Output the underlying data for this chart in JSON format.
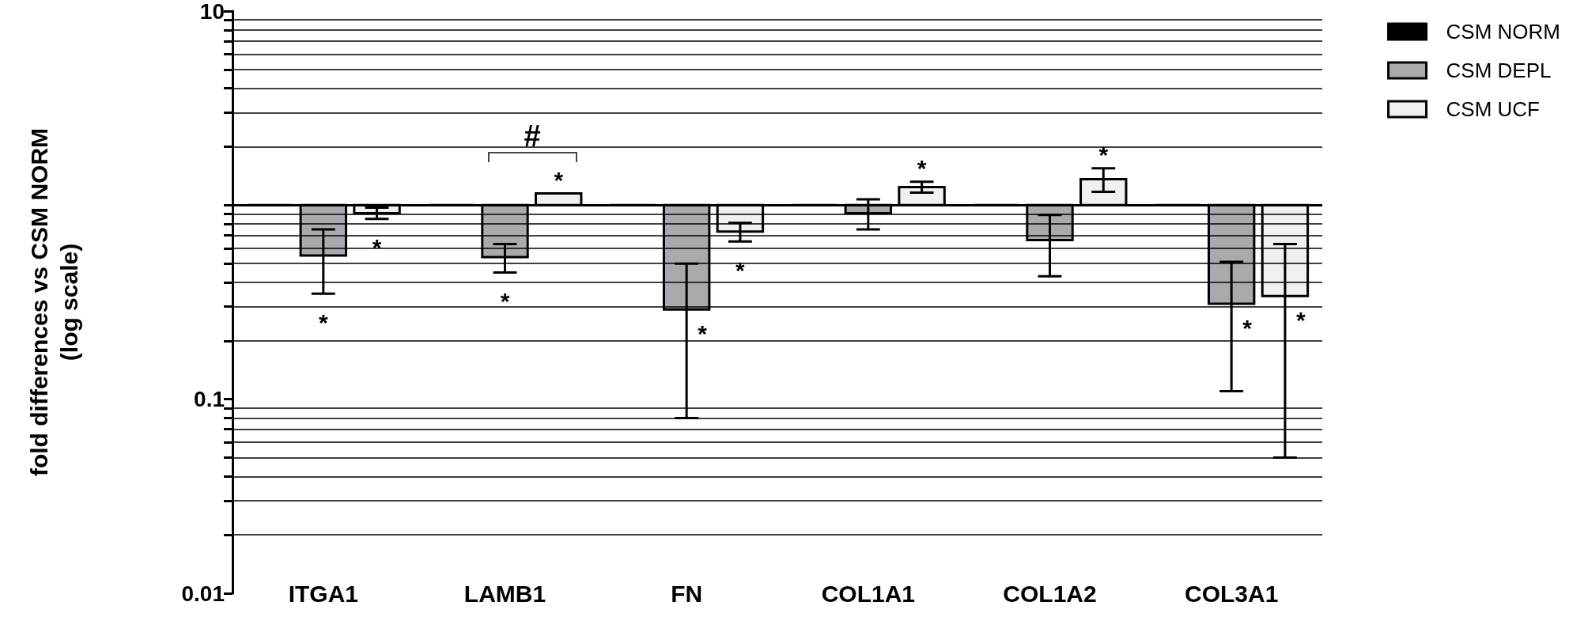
{
  "chart_data": {
    "type": "bar",
    "ylabel": "fold differences vs CSM NORM\n(log scale)",
    "categories": [
      "ITGA1",
      "LAMB1",
      "FN",
      "COL1A1",
      "COL1A2",
      "COL3A1"
    ],
    "series": [
      {
        "name": "CSM NORM",
        "color": "#000000",
        "base": [
          1,
          1,
          1,
          1,
          1,
          1
        ],
        "values": [
          0,
          0,
          0,
          0,
          0,
          0
        ]
      },
      {
        "name": "CSM DEPL",
        "color": "#a9aaae",
        "base": [
          1,
          1,
          1,
          1,
          1,
          1
        ],
        "values": [
          -0.45,
          -0.46,
          -0.71,
          -0.09,
          -0.34,
          -0.69
        ],
        "errors": [
          0.2,
          0.09,
          0.21,
          0.16,
          0.23,
          0.2
        ],
        "value_labels": [
          "*",
          "*",
          "*",
          null,
          null,
          "*"
        ]
      },
      {
        "name": "CSM UCF",
        "color": "#f0f0f0",
        "base": [
          1,
          1,
          1,
          1,
          1,
          1
        ],
        "values": [
          -0.09,
          0.15,
          -0.27,
          0.24,
          0.36,
          -0.66
        ],
        "errors": [
          0.06,
          null,
          0.08,
          0.08,
          0.19,
          0.29
        ],
        "value_labels": [
          "*",
          "*",
          "*",
          "*",
          "*",
          "*"
        ]
      }
    ],
    "log": true,
    "ylim": [
      0.01,
      10
    ],
    "yticks": [
      0.01,
      {
        "value": 0.02,
        "label": null
      },
      {
        "value": 0.03,
        "label": null
      },
      {
        "value": 0.04,
        "label": null
      },
      {
        "value": 0.05,
        "label": null
      },
      {
        "value": 0.06,
        "label": null
      },
      {
        "value": 0.07,
        "label": null
      },
      {
        "value": 0.08,
        "label": null
      },
      {
        "value": 0.09,
        "label": null
      },
      0.1,
      {
        "value": 0.2,
        "label": null
      },
      {
        "value": 0.3,
        "label": null
      },
      {
        "value": 0.4,
        "label": null
      },
      {
        "value": 0.5,
        "label": null
      },
      {
        "value": 0.6,
        "label": null
      },
      {
        "value": 0.7,
        "label": null
      },
      {
        "value": 0.8,
        "label": null
      },
      {
        "value": 0.9,
        "label": null
      },
      {
        "value": 1,
        "label": null
      },
      {
        "value": 2,
        "label": null
      },
      {
        "value": 3,
        "label": null
      },
      {
        "value": 4,
        "label": null
      },
      {
        "value": 5,
        "label": null
      },
      {
        "value": 6,
        "label": null
      },
      {
        "value": 7,
        "label": null
      },
      {
        "value": 8,
        "label": null
      },
      {
        "value": 9,
        "label": null
      },
      10
    ],
    "grid": true,
    "legend": "top right",
    "ref_lines": [
      {
        "axis": "y",
        "value": 1,
        "color": "#000000"
      }
    ],
    "annotations": [
      "#"
    ]
  }
}
